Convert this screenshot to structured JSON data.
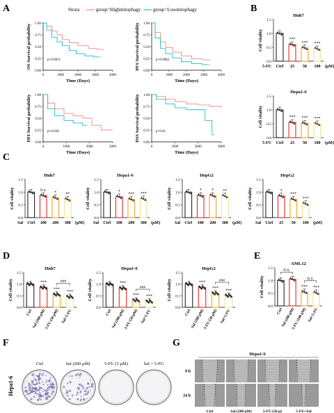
{
  "colors": {
    "high": "#f08a7e",
    "low": "#1fbcc9",
    "bar_ctrl": "#222222",
    "bar_red": "#e8241f",
    "bar_orange": "#f4a21f",
    "bar_yellow": "#f2e38a",
    "dot": "#333333",
    "petri_purple": "#7b72ad",
    "scratch_gray": "#9a9a9a"
  },
  "panel_labels": {
    "A": "A",
    "B": "B",
    "C": "C",
    "D": "D",
    "E": "E",
    "F": "F",
    "G": "G"
  },
  "panelA": {
    "legend": {
      "title": "Strata",
      "high": "group=Highmitophagy",
      "low": "group=Lowmitophagy"
    },
    "plots": [
      {
        "ylabel": "OS Survival probability",
        "xlabel": "Time (Days)",
        "pvalue": "p=0.0021",
        "xmax": 4000,
        "xticks": [
          "0",
          "1000",
          "2000",
          "3000",
          "4000"
        ],
        "yticks": [
          "0.00",
          "0.25",
          "0.50",
          "0.75",
          "1.00"
        ],
        "high": [
          [
            0,
            1
          ],
          [
            200,
            0.93
          ],
          [
            500,
            0.83
          ],
          [
            800,
            0.75
          ],
          [
            1100,
            0.65
          ],
          [
            1500,
            0.58
          ],
          [
            2000,
            0.52
          ],
          [
            2600,
            0.46
          ],
          [
            3100,
            0.44
          ],
          [
            3500,
            0.44
          ]
        ],
        "low": [
          [
            0,
            1
          ],
          [
            200,
            0.85
          ],
          [
            500,
            0.7
          ],
          [
            800,
            0.6
          ],
          [
            1100,
            0.52
          ],
          [
            1500,
            0.42
          ],
          [
            1900,
            0.35
          ],
          [
            2400,
            0.3
          ],
          [
            2900,
            0.28
          ],
          [
            3300,
            0.28
          ]
        ]
      },
      {
        "ylabel": "PFS Survival probability",
        "xlabel": "Time (Days)",
        "pvalue": "p=0.0082",
        "xmax": 4000,
        "xticks": [
          "0",
          "1000",
          "2000",
          "3000",
          "4000"
        ],
        "yticks": [
          "0.00",
          "0.25",
          "0.50",
          "0.75",
          "1.00"
        ],
        "high": [
          [
            0,
            1
          ],
          [
            200,
            0.8
          ],
          [
            500,
            0.6
          ],
          [
            800,
            0.48
          ],
          [
            1200,
            0.38
          ],
          [
            1700,
            0.3
          ],
          [
            2300,
            0.24
          ],
          [
            2900,
            0.22
          ],
          [
            3300,
            0.2
          ]
        ],
        "low": [
          [
            0,
            1
          ],
          [
            200,
            0.68
          ],
          [
            500,
            0.46
          ],
          [
            800,
            0.35
          ],
          [
            1200,
            0.26
          ],
          [
            1700,
            0.18
          ],
          [
            2300,
            0.14
          ],
          [
            2900,
            0.12
          ],
          [
            3300,
            0.12
          ]
        ]
      },
      {
        "ylabel": "DFI Survival probability",
        "xlabel": "Time (Days)",
        "pvalue": "p=0.028",
        "xmax": 3000,
        "xticks": [
          "0",
          "1000",
          "2000",
          "3000"
        ],
        "yticks": [
          "0.00",
          "0.25",
          "0.50",
          "0.75",
          "1.00"
        ],
        "high": [
          [
            0,
            1
          ],
          [
            200,
            0.82
          ],
          [
            500,
            0.7
          ],
          [
            900,
            0.6
          ],
          [
            1300,
            0.55
          ],
          [
            1700,
            0.5
          ],
          [
            2100,
            0.35
          ],
          [
            2500,
            0.25
          ],
          [
            3000,
            0.25
          ]
        ],
        "low": [
          [
            0,
            1
          ],
          [
            200,
            0.7
          ],
          [
            500,
            0.55
          ],
          [
            900,
            0.45
          ],
          [
            1300,
            0.4
          ],
          [
            1700,
            0.35
          ],
          [
            1900,
            0.35
          ]
        ]
      },
      {
        "ylabel": "DSS Survival probability",
        "xlabel": "Time (Days)",
        "pvalue": "p=0.01",
        "xmax": 3000,
        "xticks": [
          "0",
          "1000",
          "2000",
          "3000"
        ],
        "yticks": [
          "0.00",
          "0.25",
          "0.50",
          "0.75",
          "1.00"
        ],
        "high": [
          [
            0,
            1
          ],
          [
            200,
            0.96
          ],
          [
            600,
            0.9
          ],
          [
            1000,
            0.85
          ],
          [
            1500,
            0.8
          ],
          [
            2000,
            0.78
          ],
          [
            2500,
            0.75
          ],
          [
            3000,
            0.72
          ]
        ],
        "low": [
          [
            0,
            1
          ],
          [
            200,
            0.9
          ],
          [
            600,
            0.8
          ],
          [
            1000,
            0.72
          ],
          [
            1500,
            0.68
          ],
          [
            2000,
            0.68
          ],
          [
            2300,
            0.45
          ],
          [
            2600,
            0.15
          ],
          [
            2700,
            0.15
          ]
        ]
      }
    ]
  },
  "panelB": [
    {
      "title": "Huh7",
      "ylabel": "Cell vitality",
      "treatment": "5-FU",
      "unit": "(μM)",
      "categories": [
        "Ctrl",
        "25",
        "50",
        "100"
      ],
      "values": [
        1.0,
        0.6,
        0.48,
        0.45
      ],
      "sig": [
        "",
        "***",
        "***",
        "***"
      ],
      "ylim": [
        0,
        1.5
      ],
      "yticks": [
        "0.0",
        "0.5",
        "1.0",
        "1.5"
      ]
    },
    {
      "title": "Hepa1-6",
      "ylabel": "Cell vitality",
      "treatment": "5-FU",
      "unit": "(μM)",
      "categories": [
        "Ctrl",
        "25",
        "50",
        "100"
      ],
      "values": [
        1.0,
        0.55,
        0.52,
        0.5
      ],
      "sig": [
        "",
        "***",
        "***",
        "***"
      ],
      "ylim": [
        0,
        1.5
      ],
      "yticks": [
        "0.0",
        "0.5",
        "1.0",
        "1.5"
      ]
    }
  ],
  "panelC": [
    {
      "title": "Huh7",
      "ylabel": "Cell vitality",
      "treatment": "Sal",
      "unit": "(μM)",
      "categories": [
        "Ctrl",
        "100",
        "200",
        "300"
      ],
      "values": [
        1.0,
        0.87,
        0.78,
        0.72
      ],
      "sig": [
        "",
        "N.S.",
        "*",
        "**"
      ],
      "ylim": [
        0,
        1.5
      ],
      "yticks": [
        "0.0",
        "0.5",
        "1.0",
        "1.5"
      ]
    },
    {
      "title": "Hepa1-6",
      "ylabel": "Cell vitality",
      "treatment": "Sal",
      "unit": "(μM)",
      "categories": [
        "Ctrl",
        "100",
        "200",
        "300"
      ],
      "values": [
        1.0,
        0.82,
        0.72,
        0.74
      ],
      "sig": [
        "",
        "*",
        "***",
        "***"
      ],
      "ylim": [
        0,
        1.5
      ],
      "yticks": [
        "0.0",
        "0.5",
        "1.0",
        "1.5"
      ]
    },
    {
      "title": "HepG2",
      "ylabel": "Cell vitality",
      "treatment": "Sal",
      "unit": "(μM)",
      "categories": [
        "Ctrl",
        "100",
        "200",
        "300"
      ],
      "values": [
        1.0,
        0.87,
        0.87,
        0.85
      ],
      "sig": [
        "",
        "*",
        "*",
        "**"
      ],
      "ylim": [
        0,
        1.5
      ],
      "yticks": [
        "0.0",
        "0.5",
        "1.0",
        "1.5"
      ]
    },
    {
      "title": "HepG2",
      "ylabel": "Cell vitality",
      "treatment": "Sal",
      "unit": "(μM)",
      "categories": [
        "Ctrl",
        "25",
        "50",
        "100"
      ],
      "values": [
        1.0,
        0.85,
        0.72,
        0.55
      ],
      "sig": [
        "",
        "*",
        "***",
        "***"
      ],
      "ylim": [
        0,
        1.5
      ],
      "yticks": [
        "0.0",
        "0.5",
        "1.0",
        "1.5"
      ]
    }
  ],
  "panelD": [
    {
      "title": "Huh7",
      "ylabel": "Cell vitality",
      "categories": [
        "Ctrl",
        "Sal (200 μM)",
        "5-FU (50 μM)",
        "Sal+5-FU"
      ],
      "values": [
        1.0,
        0.85,
        0.55,
        0.45
      ],
      "sig": [
        "",
        "***",
        "***",
        "***"
      ],
      "bracket": "###",
      "ylim": [
        0,
        1.5
      ],
      "yticks": [
        "0.0",
        "0.5",
        "1.0",
        "1.5"
      ]
    },
    {
      "title": "Hepa1-6",
      "ylabel": "Cell vitality",
      "categories": [
        "Ctrl",
        "Sal (200 μM)",
        "5-FU (50 μM)",
        "Sal+5-FU"
      ],
      "values": [
        1.0,
        0.82,
        0.3,
        0.25
      ],
      "sig": [
        "",
        "***",
        "***",
        "***"
      ],
      "bracket": "###",
      "ylim": [
        0,
        1.5
      ],
      "yticks": [
        "0.0",
        "0.5",
        "1.0",
        "1.5"
      ]
    },
    {
      "title": "HepG2",
      "ylabel": "Cell vitality",
      "categories": [
        "Ctrl",
        "Sal (200 μM)",
        "5-FU (50 μM)",
        "Sal+5-FU"
      ],
      "values": [
        1.0,
        0.85,
        0.6,
        0.5
      ],
      "sig": [
        "",
        "***",
        "***",
        "***"
      ],
      "bracket": "###",
      "ylim": [
        0,
        1.5
      ],
      "yticks": [
        "0.0",
        "0.5",
        "1.0",
        "1.5"
      ]
    }
  ],
  "panelE": {
    "title": "AML12",
    "ylabel": "Cell vitality",
    "categories": [
      "Ctrl",
      "Sal (200 μM)",
      "5-FU (100 μM)",
      "Sal+5-FU"
    ],
    "values": [
      1.0,
      1.05,
      0.55,
      0.52
    ],
    "sig": [
      "",
      "",
      "***",
      "***"
    ],
    "brackets": [
      "N.S.",
      "N.S."
    ],
    "ylim": [
      0,
      1.5
    ],
    "yticks": [
      "0.0",
      "0.5",
      "1.0",
      "1.5"
    ]
  },
  "panelF": {
    "row_label": "Hepa1-6",
    "columns": [
      "Ctrl",
      "Sal (200 μM)",
      "5-FU (5 μM)",
      "Sal + 5-FU"
    ]
  },
  "panelG": {
    "title": "Hepa1-6",
    "rows": [
      "0 h",
      "24 h"
    ],
    "columns": [
      "Ctrl",
      "Sal (200 μM)",
      "5-FU (50 μ)",
      "5-FU+Sal"
    ]
  }
}
